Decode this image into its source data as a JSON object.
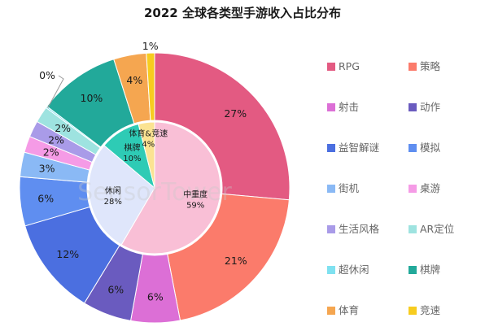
{
  "chart_data": {
    "type": "pie",
    "title": "2022 全球各类型手游收入占比分布",
    "watermark": "SensorTower",
    "outer_ring": [
      {
        "name": "RPG",
        "value": 27,
        "label": "27%",
        "color": "#e35a82"
      },
      {
        "name": "策略",
        "value": 21,
        "label": "21%",
        "color": "#fb7b6b"
      },
      {
        "name": "射击",
        "value": 6,
        "label": "6%",
        "color": "#dc6fd6"
      },
      {
        "name": "动作",
        "value": 6,
        "label": "6%",
        "color": "#6a5bbf"
      },
      {
        "name": "益智解谜",
        "value": 12,
        "label": "12%",
        "color": "#4b6fe0"
      },
      {
        "name": "模拟",
        "value": 6,
        "label": "6%",
        "color": "#5f8ef0"
      },
      {
        "name": "街机",
        "value": 3,
        "label": "3%",
        "color": "#8ab9f5"
      },
      {
        "name": "桌游",
        "value": 2,
        "label": "2%",
        "color": "#f59be6"
      },
      {
        "name": "生活风格",
        "value": 2,
        "label": "2%",
        "color": "#a99be8"
      },
      {
        "name": "AR定位",
        "value": 2,
        "label": "2%",
        "color": "#9ee3e0"
      },
      {
        "name": "超休闲",
        "value": 0.2,
        "label": "0%",
        "color": "#7fe1f0"
      },
      {
        "name": "棋牌",
        "value": 10,
        "label": "10%",
        "color": "#22a99a"
      },
      {
        "name": "体育",
        "value": 4,
        "label": "4%",
        "color": "#f5a650"
      },
      {
        "name": "竞速",
        "value": 1,
        "label": "1%",
        "color": "#f7cc1f"
      }
    ],
    "inner_ring": [
      {
        "name": "中重度",
        "value": 59,
        "label": "59%",
        "color": "#f9bfd6"
      },
      {
        "name": "休闲",
        "value": 28,
        "label": "28%",
        "color": "#dfe6fb"
      },
      {
        "name": "棋牌",
        "value": 10,
        "label": "10%",
        "color": "#2ecbb5"
      },
      {
        "name": "体育&竞速",
        "value": 4,
        "label": "4%",
        "color": "#fbe392"
      }
    ],
    "legend": [
      {
        "name": "RPG",
        "color": "#e35a82"
      },
      {
        "name": "策略",
        "color": "#fb7b6b"
      },
      {
        "name": "射击",
        "color": "#dc6fd6"
      },
      {
        "name": "动作",
        "color": "#6a5bbf"
      },
      {
        "name": "益智解谜",
        "color": "#4b6fe0"
      },
      {
        "name": "模拟",
        "color": "#5f8ef0"
      },
      {
        "name": "街机",
        "color": "#8ab9f5"
      },
      {
        "name": "桌游",
        "color": "#f59be6"
      },
      {
        "name": "生活风格",
        "color": "#a99be8"
      },
      {
        "name": "AR定位",
        "color": "#9ee3e0"
      },
      {
        "name": "超休闲",
        "color": "#7fe1f0"
      },
      {
        "name": "棋牌",
        "color": "#22a99a"
      },
      {
        "name": "体育",
        "color": "#f5a650"
      },
      {
        "name": "竞速",
        "color": "#f7cc1f"
      }
    ],
    "legend_position": "right"
  }
}
